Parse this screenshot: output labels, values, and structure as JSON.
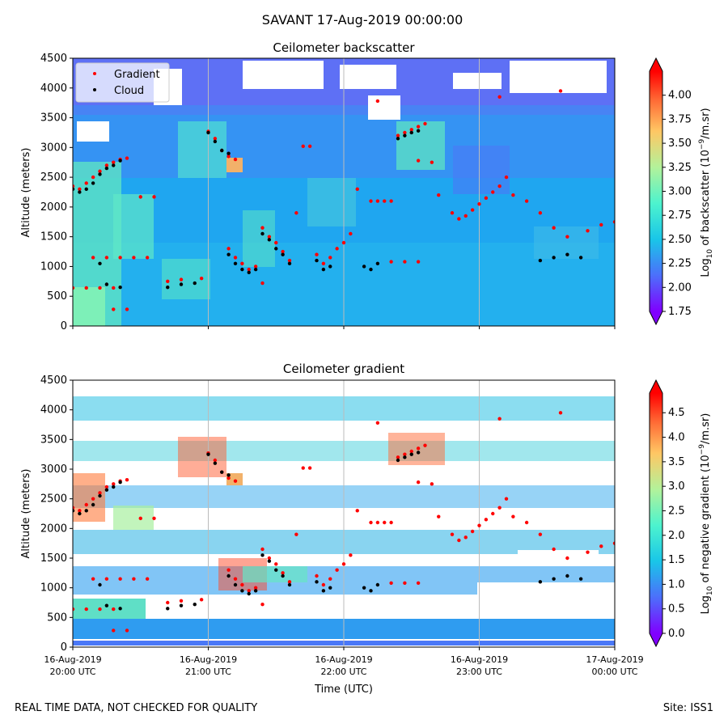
{
  "suptitle": "SAVANT 17-Aug-2019 00:00:00",
  "footer": {
    "left": "REAL TIME DATA, NOT CHECKED FOR QUALITY",
    "right": "Site: ISS1"
  },
  "colors": {
    "gradient_marker": "#ff0000",
    "cloud_marker": "#000000",
    "gridline": "#bbbbbb",
    "colormap": "rainbow"
  },
  "chart_data": [
    {
      "type": "heatmap",
      "title": "Ceilometer backscatter",
      "ylabel": "Altitude (meters)",
      "xlabel": "",
      "ylim": [
        0,
        4500
      ],
      "yticks": [
        0,
        500,
        1000,
        1500,
        2000,
        2500,
        3000,
        3500,
        4000,
        4500
      ],
      "x_ticks": [
        {
          "line1": "",
          "line2": ""
        },
        {
          "line1": "",
          "line2": ""
        },
        {
          "line1": "",
          "line2": ""
        },
        {
          "line1": "",
          "line2": ""
        },
        {
          "line1": "",
          "line2": ""
        }
      ],
      "grid": "vertical",
      "legend": {
        "placement": "top-left",
        "entries": [
          "Gradient",
          "Cloud"
        ]
      },
      "colorbar": {
        "label": "Log10 of backscatter (10^-9/m.sr)",
        "label_main": "Log",
        "label_sub": "10",
        "label_rest": " of backscatter (10",
        "label_sup": "−9",
        "label_end": "/m.sr)",
        "range": [
          1.75,
          4.25
        ],
        "ticks": [
          "1.75",
          "2.00",
          "2.25",
          "2.50",
          "2.75",
          "3.00",
          "3.25",
          "3.50",
          "3.75",
          "4.00"
        ],
        "extend": "both"
      },
      "series": [
        {
          "name": "Gradient",
          "marker": "red dot",
          "points": [
            [
              20.0,
              2350
            ],
            [
              20.05,
              2300
            ],
            [
              20.1,
              2400
            ],
            [
              20.15,
              2500
            ],
            [
              20.2,
              2600
            ],
            [
              20.25,
              2700
            ],
            [
              20.3,
              2750
            ],
            [
              20.35,
              2800
            ],
            [
              20.4,
              2820
            ],
            [
              20.0,
              640
            ],
            [
              20.1,
              640
            ],
            [
              20.2,
              640
            ],
            [
              20.3,
              640
            ],
            [
              20.15,
              1150
            ],
            [
              20.25,
              1150
            ],
            [
              20.35,
              1150
            ],
            [
              20.45,
              1150
            ],
            [
              20.55,
              1150
            ],
            [
              20.3,
              280
            ],
            [
              20.4,
              280
            ],
            [
              20.5,
              2170
            ],
            [
              20.6,
              2170
            ],
            [
              20.7,
              750
            ],
            [
              20.8,
              780
            ],
            [
              20.95,
              800
            ],
            [
              21.0,
              3270
            ],
            [
              21.05,
              3150
            ],
            [
              21.1,
              2950
            ],
            [
              21.15,
              2850
            ],
            [
              21.2,
              2800
            ],
            [
              21.15,
              1300
            ],
            [
              21.2,
              1150
            ],
            [
              21.25,
              1050
            ],
            [
              21.3,
              950
            ],
            [
              21.35,
              1000
            ],
            [
              21.4,
              1650
            ],
            [
              21.45,
              1500
            ],
            [
              21.5,
              1400
            ],
            [
              21.55,
              1250
            ],
            [
              21.6,
              1100
            ],
            [
              21.65,
              1900
            ],
            [
              21.7,
              3020
            ],
            [
              21.75,
              3020
            ],
            [
              21.8,
              1200
            ],
            [
              21.85,
              1050
            ],
            [
              21.9,
              1150
            ],
            [
              21.95,
              1300
            ],
            [
              22.0,
              1400
            ],
            [
              22.05,
              1550
            ],
            [
              22.1,
              2300
            ],
            [
              22.2,
              2100
            ],
            [
              22.25,
              2100
            ],
            [
              22.3,
              2100
            ],
            [
              22.35,
              2100
            ],
            [
              22.35,
              1080
            ],
            [
              22.45,
              1080
            ],
            [
              22.55,
              1080
            ],
            [
              22.4,
              3200
            ],
            [
              22.45,
              3250
            ],
            [
              22.5,
              3300
            ],
            [
              22.55,
              3350
            ],
            [
              22.6,
              3400
            ],
            [
              22.55,
              2780
            ],
            [
              22.65,
              2750
            ],
            [
              22.7,
              2200
            ],
            [
              22.8,
              1900
            ],
            [
              22.85,
              1800
            ],
            [
              22.9,
              1850
            ],
            [
              22.95,
              1950
            ],
            [
              23.0,
              2050
            ],
            [
              23.05,
              2150
            ],
            [
              23.1,
              2250
            ],
            [
              23.15,
              2350
            ],
            [
              23.2,
              2500
            ],
            [
              23.25,
              2200
            ],
            [
              23.35,
              2100
            ],
            [
              23.45,
              1900
            ],
            [
              23.55,
              1650
            ],
            [
              23.65,
              1500
            ],
            [
              23.8,
              1600
            ],
            [
              23.9,
              1700
            ],
            [
              24.0,
              1750
            ],
            [
              23.15,
              3850
            ],
            [
              23.6,
              3950
            ],
            [
              22.25,
              3780
            ],
            [
              21.4,
              720
            ]
          ]
        },
        {
          "name": "Cloud",
          "marker": "black dot",
          "points": [
            [
              20.0,
              2300
            ],
            [
              20.05,
              2250
            ],
            [
              20.1,
              2300
            ],
            [
              20.15,
              2400
            ],
            [
              20.2,
              2550
            ],
            [
              20.25,
              2650
            ],
            [
              20.3,
              2700
            ],
            [
              20.35,
              2780
            ],
            [
              20.2,
              1050
            ],
            [
              20.25,
              700
            ],
            [
              20.35,
              650
            ],
            [
              20.7,
              650
            ],
            [
              20.8,
              700
            ],
            [
              20.9,
              720
            ],
            [
              21.0,
              3250
            ],
            [
              21.05,
              3100
            ],
            [
              21.1,
              2950
            ],
            [
              21.15,
              2900
            ],
            [
              21.15,
              1200
            ],
            [
              21.2,
              1050
            ],
            [
              21.25,
              950
            ],
            [
              21.3,
              900
            ],
            [
              21.35,
              950
            ],
            [
              21.4,
              1550
            ],
            [
              21.45,
              1450
            ],
            [
              21.5,
              1300
            ],
            [
              21.55,
              1200
            ],
            [
              21.6,
              1050
            ],
            [
              21.8,
              1100
            ],
            [
              21.85,
              950
            ],
            [
              21.9,
              1000
            ],
            [
              22.15,
              1000
            ],
            [
              22.2,
              950
            ],
            [
              22.25,
              1050
            ],
            [
              22.4,
              3150
            ],
            [
              22.45,
              3200
            ],
            [
              22.5,
              3250
            ],
            [
              22.55,
              3280
            ],
            [
              23.45,
              1100
            ],
            [
              23.55,
              1150
            ],
            [
              23.65,
              1200
            ],
            [
              23.75,
              1150
            ]
          ]
        }
      ]
    },
    {
      "type": "heatmap",
      "title": "Ceilometer gradient",
      "ylabel": "Altitude (meters)",
      "xlabel": "Time (UTC)",
      "ylim": [
        0,
        4500
      ],
      "yticks": [
        0,
        500,
        1000,
        1500,
        2000,
        2500,
        3000,
        3500,
        4000,
        4500
      ],
      "x_ticks": [
        {
          "line1": "16-Aug-2019",
          "line2": "20:00 UTC"
        },
        {
          "line1": "16-Aug-2019",
          "line2": "21:00 UTC"
        },
        {
          "line1": "16-Aug-2019",
          "line2": "22:00 UTC"
        },
        {
          "line1": "16-Aug-2019",
          "line2": "23:00 UTC"
        },
        {
          "line1": "17-Aug-2019",
          "line2": "00:00 UTC"
        }
      ],
      "grid": "vertical",
      "colorbar": {
        "label": "Log10 of negative gradient (10^-9/m.sr)",
        "label_main": "Log",
        "label_sub": "10",
        "label_rest": " of negative gradient (10",
        "label_sup": "−9",
        "label_end": "/m.sr)",
        "range": [
          0.0,
          4.9
        ],
        "ticks": [
          "0.0",
          "0.5",
          "1.0",
          "1.5",
          "2.0",
          "2.5",
          "3.0",
          "3.5",
          "4.0",
          "4.5"
        ],
        "extend": "both"
      }
    }
  ]
}
